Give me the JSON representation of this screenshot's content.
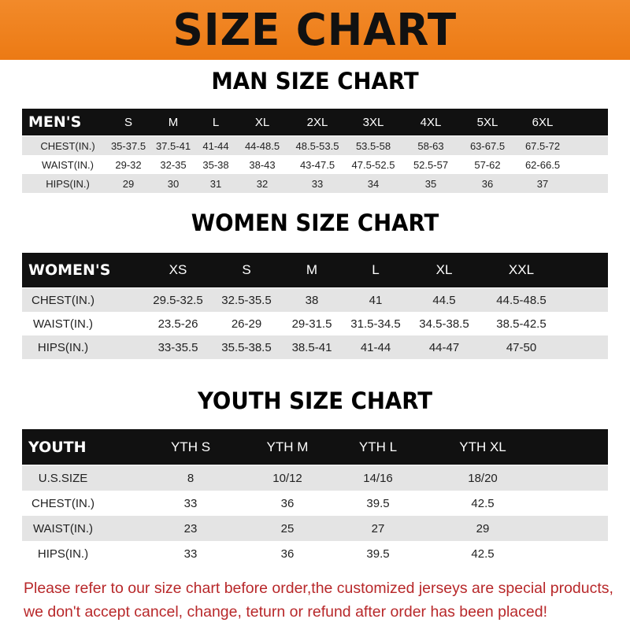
{
  "banner": {
    "title": "SIZE CHART",
    "color": "#ee7f1c"
  },
  "men": {
    "title": "MAN SIZE CHART",
    "header": [
      "MEN'S",
      "S",
      "M",
      "L",
      "XL",
      "2XL",
      "3XL",
      "4XL",
      "5XL",
      "6XL"
    ],
    "rows": [
      [
        "CHEST(IN.)",
        "35-37.5",
        "37.5-41",
        "41-44",
        "44-48.5",
        "48.5-53.5",
        "53.5-58",
        "58-63",
        "63-67.5",
        "67.5-72"
      ],
      [
        "WAIST(IN.)",
        "29-32",
        "32-35",
        "35-38",
        "38-43",
        "43-47.5",
        "47.5-52.5",
        "52.5-57",
        "57-62",
        "62-66.5"
      ],
      [
        "HIPS(IN.)",
        "29",
        "30",
        "31",
        "32",
        "33",
        "34",
        "35",
        "36",
        "37"
      ]
    ]
  },
  "women": {
    "title": "WOMEN SIZE CHART",
    "header": [
      "WOMEN'S",
      "XS",
      "S",
      "M",
      "L",
      "XL",
      "XXL"
    ],
    "rows": [
      [
        "CHEST(IN.)",
        "29.5-32.5",
        "32.5-35.5",
        "38",
        "41",
        "44.5",
        "44.5-48.5"
      ],
      [
        "WAIST(IN.)",
        "23.5-26",
        "26-29",
        "29-31.5",
        "31.5-34.5",
        "34.5-38.5",
        "38.5-42.5"
      ],
      [
        "HIPS(IN.)",
        "33-35.5",
        "35.5-38.5",
        "38.5-41",
        "41-44",
        "44-47",
        "47-50"
      ]
    ]
  },
  "youth": {
    "title": "YOUTH SIZE CHART",
    "header": [
      "YOUTH",
      "YTH S",
      "YTH M",
      "YTH L",
      "YTH XL"
    ],
    "rows": [
      [
        "U.S.SIZE",
        "8",
        "10/12",
        "14/16",
        "18/20"
      ],
      [
        "CHEST(IN.)",
        "33",
        "36",
        "39.5",
        "42.5"
      ],
      [
        "WAIST(IN.)",
        "23",
        "25",
        "27",
        "29"
      ],
      [
        "HIPS(IN.)",
        "33",
        "36",
        "39.5",
        "42.5"
      ]
    ]
  },
  "notice": {
    "line1": "Please refer to our size chart before order,the customized jerseys are special products,",
    "line2": "we don't accept cancel, change, teturn or refund after order has been placed!"
  }
}
